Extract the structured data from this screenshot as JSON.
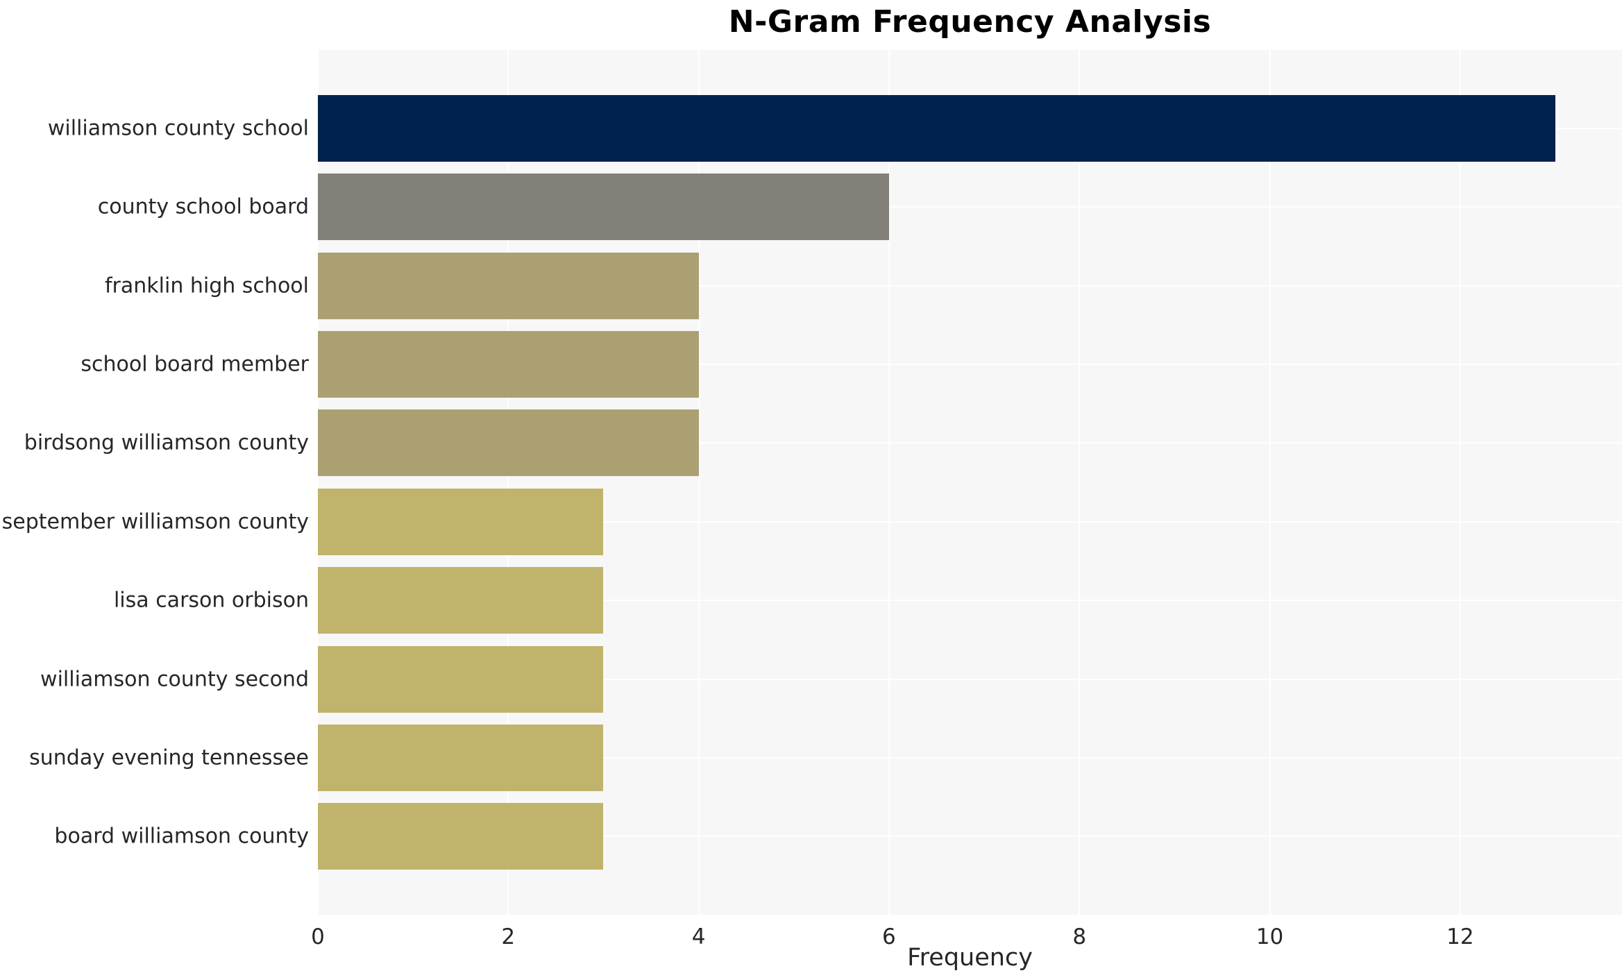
{
  "chart_data": {
    "type": "bar",
    "orientation": "horizontal",
    "title": "N-Gram Frequency Analysis",
    "xlabel": "Frequency",
    "ylabel": "",
    "categories": [
      "williamson county school",
      "county school board",
      "franklin high school",
      "school board member",
      "birdsong williamson county",
      "september williamson county",
      "lisa carson orbison",
      "williamson county second",
      "sunday evening tennessee",
      "board williamson county"
    ],
    "values": [
      13,
      6,
      4,
      4,
      4,
      3,
      3,
      3,
      3,
      3
    ],
    "bar_colors": [
      "#00224e",
      "#83807a",
      "#aaa072",
      "#aaa072",
      "#aaa072",
      "#c0b36b",
      "#c0b36b",
      "#c0b36b",
      "#c0b36b",
      "#c0b36b"
    ],
    "xticks": [
      0,
      2,
      4,
      6,
      8,
      10,
      12
    ],
    "xlim": [
      0,
      13.7
    ],
    "grid": true,
    "legend": false,
    "plot_background": "#f7f7f7",
    "gridline_color": "#ffffff"
  }
}
